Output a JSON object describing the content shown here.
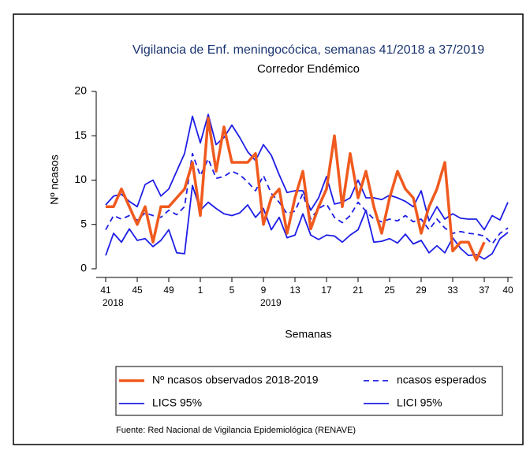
{
  "chart_data": {
    "type": "line",
    "title": "Vigilancia de Enf. meningocócica, semanas 41/2018 a 37/2019",
    "subtitle": "Corredor Endémico",
    "xlabel": "Semanas",
    "ylabel": "Nº ncasos",
    "source": "Fuente: Red Nacional de Vigilancia Epidemiológica (RENAVE)",
    "categories": [
      "41",
      null,
      null,
      null,
      "45",
      null,
      null,
      null,
      "49",
      null,
      null,
      null,
      "1",
      null,
      null,
      null,
      "5",
      null,
      null,
      null,
      "9",
      null,
      null,
      null,
      "13",
      null,
      null,
      null,
      "17",
      null,
      null,
      null,
      "21",
      null,
      null,
      null,
      "25",
      null,
      null,
      null,
      "29",
      null,
      null,
      null,
      "33",
      null,
      null,
      null,
      "37",
      null,
      null,
      "40"
    ],
    "year_labels": [
      "2018",
      null,
      null,
      null,
      null,
      null,
      null,
      null,
      null,
      null,
      null,
      null,
      null,
      null,
      null,
      null,
      null,
      null,
      null,
      null,
      "2019",
      null,
      null,
      null,
      null,
      null,
      null,
      null,
      null,
      null,
      null,
      null,
      null,
      null,
      null,
      null,
      null,
      null,
      null,
      null,
      null,
      null,
      null,
      null,
      null,
      null,
      null,
      null,
      null,
      null,
      null,
      null
    ],
    "ylim": [
      0,
      20
    ],
    "yticks": [
      0,
      5,
      10,
      15,
      20
    ],
    "series": [
      {
        "name": "Nº ncasos observados 2018-2019",
        "color": "#f05a1e",
        "line_style": "solid",
        "values": [
          7,
          7,
          9,
          7,
          5,
          7,
          3,
          7,
          7,
          8,
          9,
          12,
          6,
          17,
          11,
          16,
          12,
          12,
          12,
          13,
          5,
          8,
          9,
          4,
          8,
          11,
          4.5,
          7,
          9,
          15,
          7,
          13,
          8,
          11,
          7,
          4,
          8,
          11,
          9,
          8,
          4,
          7,
          9,
          12,
          2,
          3,
          3,
          1,
          3,
          null,
          null,
          null
        ]
      },
      {
        "name": "ncasos esperados",
        "color": "#1e1ee6",
        "line_style": "dashed",
        "values": [
          4.4,
          6,
          5.6,
          6,
          5.5,
          6.3,
          6,
          5.8,
          6.6,
          6.1,
          7,
          13,
          10.5,
          12.4,
          10.2,
          10.4,
          11,
          10.6,
          9.8,
          8.8,
          10.5,
          8.5,
          7.5,
          6.2,
          6.5,
          8.5,
          5.6,
          6.8,
          7.3,
          5.8,
          5.2,
          6,
          7.5,
          6.5,
          5.6,
          5.3,
          5.6,
          5.4,
          6,
          5.3,
          5.6,
          4.4,
          5.6,
          4.6,
          4,
          4.2,
          4,
          3.9,
          3.7,
          2.8,
          4,
          4.6
        ]
      },
      {
        "name": "LICS 95%",
        "color": "#1e1ee6",
        "line_style": "solid",
        "values": [
          7.2,
          8.2,
          8.4,
          7.6,
          7,
          9.5,
          10,
          8.2,
          9,
          11,
          13,
          17.2,
          14.2,
          17.4,
          14,
          14.8,
          16.2,
          14.8,
          13.2,
          12.2,
          14,
          12.8,
          10.6,
          8.6,
          8.8,
          8.8,
          6.6,
          8,
          10.4,
          7.3,
          7.5,
          8,
          10,
          8,
          8,
          7.8,
          8.3,
          8,
          7.6,
          7,
          8.8,
          5.4,
          7,
          5.6,
          6.2,
          5.7,
          5.6,
          5.6,
          4.4,
          6,
          5.5,
          7.5
        ]
      },
      {
        "name": "LICI 95%",
        "color": "#1e1ee6",
        "line_style": "solid",
        "values": [
          1.5,
          4,
          3,
          4.5,
          3.2,
          3.4,
          2.5,
          3.2,
          4.4,
          1.8,
          1.7,
          9.4,
          6.6,
          7.5,
          6.8,
          6.2,
          6,
          6.3,
          7.2,
          5.8,
          6.8,
          4.4,
          5.8,
          3.5,
          3.8,
          6.2,
          3.8,
          3.3,
          3.8,
          3.7,
          3,
          3.8,
          4.4,
          6.6,
          3,
          3.1,
          3.4,
          2.9,
          3.9,
          2.8,
          3.2,
          1.8,
          2.6,
          1.8,
          3.5,
          2.3,
          1.5,
          1.6,
          1.1,
          1.7,
          3.4,
          4.1
        ]
      }
    ]
  }
}
